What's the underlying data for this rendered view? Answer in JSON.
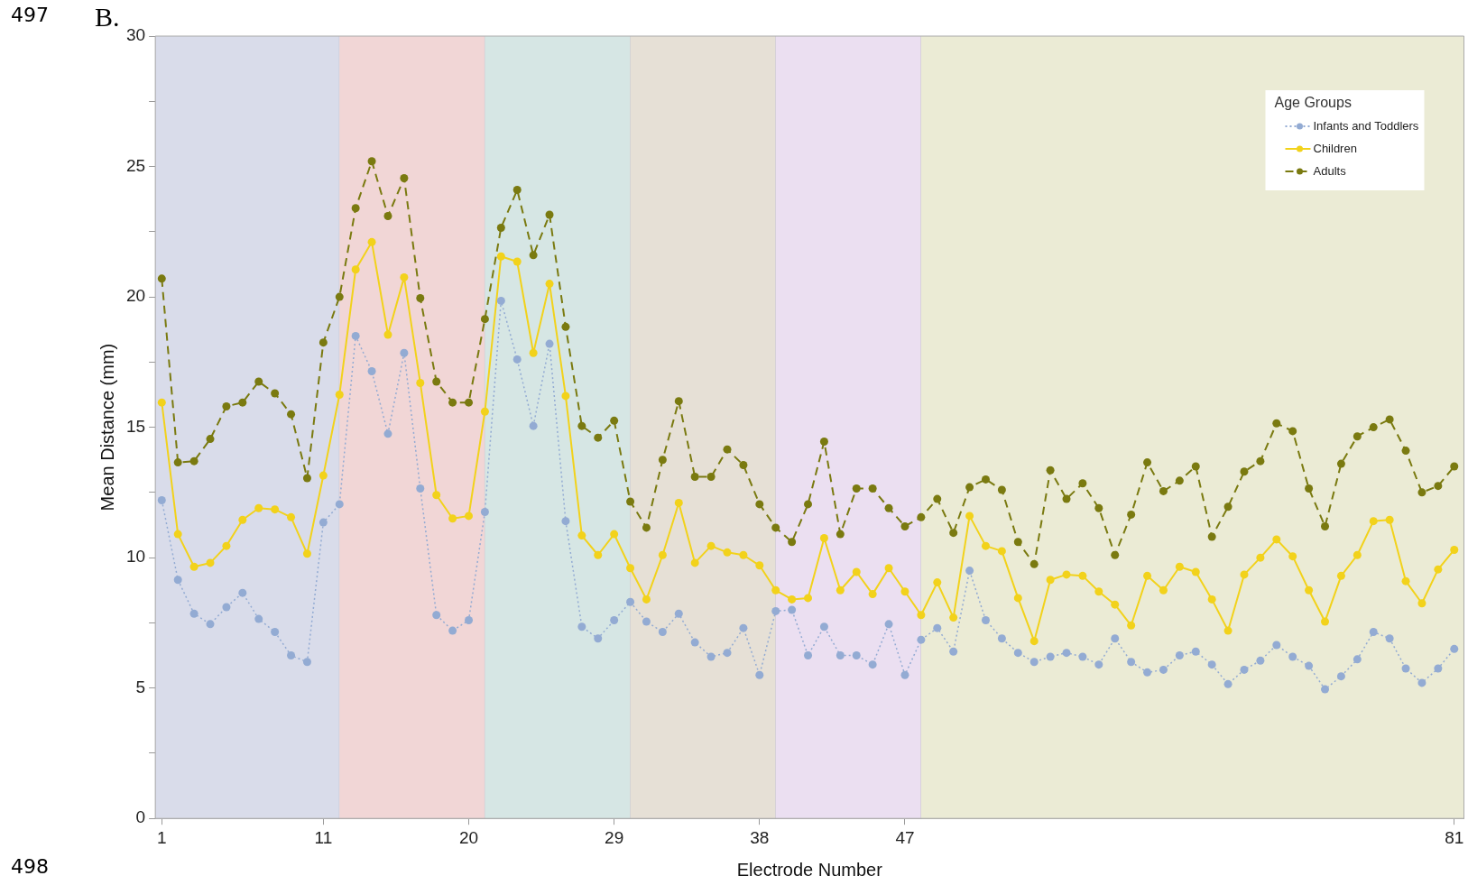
{
  "chart_data": {
    "type": "line",
    "title": "B.",
    "xlabel": "Electrode Number",
    "ylabel": "Mean Distance (mm)",
    "legend_title": "Age Groups",
    "annotations": [
      "497",
      "498"
    ],
    "x": [
      1,
      2,
      3,
      4,
      5,
      6,
      7,
      8,
      9,
      10,
      11,
      12,
      13,
      14,
      15,
      16,
      17,
      18,
      19,
      20,
      21,
      22,
      23,
      24,
      25,
      26,
      27,
      28,
      29,
      30,
      31,
      32,
      33,
      34,
      35,
      36,
      37,
      38,
      39,
      40,
      41,
      42,
      43,
      44,
      45,
      46,
      47,
      48,
      49,
      50,
      51,
      52,
      53,
      54,
      55,
      56,
      57,
      58,
      59,
      60,
      61,
      62,
      63,
      64,
      65,
      66,
      67,
      68,
      69,
      70,
      71,
      72,
      73,
      74,
      75,
      76,
      77,
      78,
      79,
      80,
      81
    ],
    "series": [
      {
        "name": "Infants and Toddlers",
        "color": "#93abd3",
        "line_style": "dotted",
        "values": [
          12.2,
          9.15,
          7.85,
          7.45,
          8.1,
          8.65,
          7.65,
          7.15,
          6.25,
          6.0,
          11.35,
          12.05,
          18.5,
          17.15,
          14.75,
          17.85,
          12.65,
          7.8,
          7.2,
          7.6,
          11.75,
          19.85,
          17.6,
          15.05,
          18.2,
          11.4,
          7.35,
          6.9,
          7.6,
          8.3,
          7.55,
          7.15,
          7.85,
          6.75,
          6.2,
          6.35,
          7.3,
          5.5,
          7.95,
          8.0,
          6.25,
          7.35,
          6.25,
          6.25,
          5.9,
          7.45,
          5.5,
          6.85,
          7.3,
          6.4,
          9.5,
          7.6,
          6.9,
          6.35,
          6.0,
          6.2,
          6.35,
          6.2,
          5.9,
          6.9,
          6.0,
          5.6,
          5.7,
          6.25,
          6.4,
          5.9,
          5.15,
          5.7,
          6.05,
          6.65,
          6.2,
          5.85,
          4.95,
          5.45,
          6.1,
          7.15,
          6.9,
          5.75,
          5.2,
          5.75,
          6.5
        ]
      },
      {
        "name": "Children",
        "color": "#f2d21b",
        "line_style": "solid",
        "values": [
          15.95,
          10.9,
          9.65,
          9.8,
          10.45,
          11.45,
          11.9,
          11.85,
          11.55,
          10.15,
          13.15,
          16.25,
          21.05,
          22.1,
          18.55,
          20.75,
          16.7,
          12.4,
          11.5,
          11.6,
          15.6,
          21.55,
          21.35,
          17.85,
          20.5,
          16.2,
          10.85,
          10.1,
          10.9,
          9.6,
          8.4,
          10.1,
          12.1,
          9.8,
          10.45,
          10.2,
          10.1,
          9.7,
          8.75,
          8.4,
          8.45,
          10.75,
          8.75,
          9.45,
          8.6,
          9.6,
          8.7,
          7.8,
          9.05,
          7.7,
          11.6,
          10.45,
          10.25,
          8.45,
          6.8,
          9.15,
          9.35,
          9.3,
          8.7,
          8.2,
          7.4,
          9.3,
          8.75,
          9.65,
          9.45,
          8.4,
          7.2,
          9.35,
          10.0,
          10.7,
          10.05,
          8.75,
          7.55,
          9.3,
          10.1,
          11.4,
          11.45,
          9.1,
          8.25,
          9.55,
          10.3
        ]
      },
      {
        "name": "Adults",
        "color": "#7a7a10",
        "line_style": "dashed",
        "values": [
          20.7,
          13.65,
          13.7,
          14.55,
          15.8,
          15.95,
          16.75,
          16.3,
          15.5,
          13.05,
          18.25,
          20.0,
          23.4,
          25.2,
          23.1,
          24.55,
          19.95,
          16.75,
          15.95,
          15.95,
          19.15,
          22.65,
          24.1,
          21.6,
          23.15,
          18.85,
          15.05,
          14.6,
          15.25,
          12.15,
          11.15,
          13.75,
          16.0,
          13.1,
          13.1,
          14.15,
          13.55,
          12.05,
          11.15,
          10.6,
          12.05,
          14.45,
          10.9,
          12.65,
          12.65,
          11.9,
          11.2,
          11.55,
          12.25,
          10.95,
          12.7,
          13.0,
          12.6,
          10.6,
          9.75,
          13.35,
          12.25,
          12.85,
          11.9,
          10.1,
          11.65,
          13.65,
          12.55,
          12.95,
          13.5,
          10.8,
          11.95,
          13.3,
          13.7,
          15.15,
          14.85,
          12.65,
          11.2,
          13.6,
          14.65,
          15.0,
          15.3,
          14.1,
          12.5,
          12.75,
          13.5
        ]
      }
    ],
    "bands": [
      {
        "axis": "x",
        "from": 0.6,
        "to": 12,
        "color": "#d9dcea"
      },
      {
        "axis": "x",
        "from": 12,
        "to": 21,
        "color": "#f1d6d6"
      },
      {
        "axis": "x",
        "from": 21,
        "to": 30,
        "color": "#d6e6e4"
      },
      {
        "axis": "x",
        "from": 30,
        "to": 39,
        "color": "#e6e0d6"
      },
      {
        "axis": "x",
        "from": 39,
        "to": 48,
        "color": "#ebdff1"
      },
      {
        "axis": "x",
        "from": 48,
        "to": 81.6,
        "color": "#ebebd5"
      }
    ],
    "xlim": [
      0.6,
      81.6
    ],
    "xticks": [
      1,
      11,
      20,
      29,
      38,
      47,
      81
    ],
    "ylim": [
      0,
      30
    ],
    "yticks": [
      0,
      {
        "value": 2.5,
        "label": null
      },
      5,
      {
        "value": 7.5,
        "label": null
      },
      10,
      {
        "value": 12.5,
        "label": null
      },
      15,
      {
        "value": 17.5,
        "label": null
      },
      20,
      {
        "value": 22.5,
        "label": null
      },
      25,
      {
        "value": 27.5,
        "label": null
      },
      30
    ],
    "grid": false,
    "legend": "top right",
    "marker": "circle"
  }
}
